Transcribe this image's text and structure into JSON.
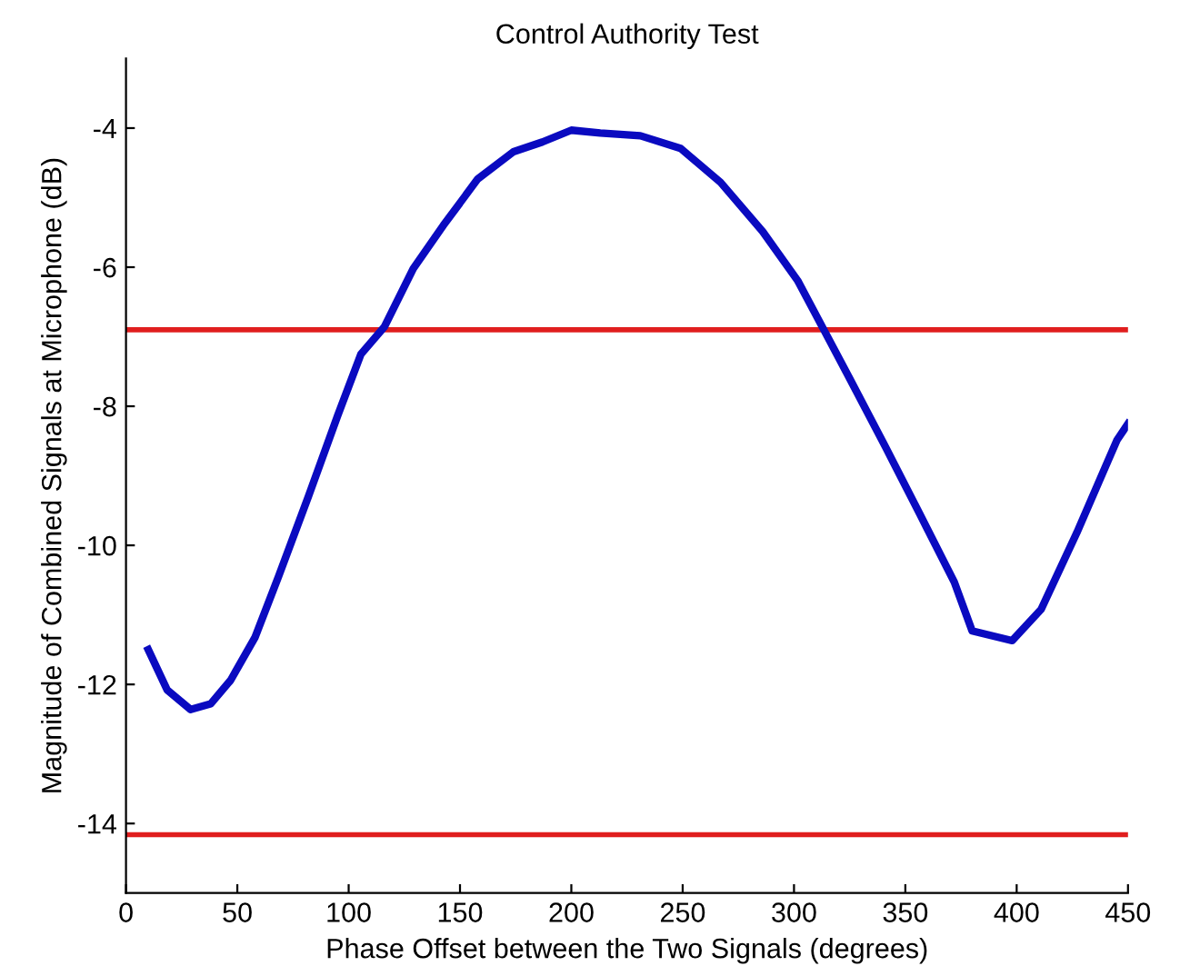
{
  "chart_data": {
    "type": "line",
    "title": "Control Authority Test",
    "xlabel": "Phase Offset between the Two Signals (degrees)",
    "ylabel": "Magnitude of Combined Signals at Microphone (dB)",
    "x": [
      10,
      18.5,
      29,
      38,
      47,
      58,
      68.6,
      82,
      95,
      105.5,
      116,
      129,
      142.5,
      158,
      174,
      187,
      200,
      213,
      231,
      249,
      267,
      286,
      301.6,
      313.4,
      325,
      341,
      356.5,
      372,
      380,
      398,
      411,
      427,
      445,
      450
    ],
    "series": [
      {
        "color": "#0a0ac0",
        "values": [
          -11.5,
          -12.08,
          -12.36,
          -12.28,
          -11.94,
          -11.32,
          -10.44,
          -9.29,
          -8.14,
          -7.25,
          -6.86,
          -6.02,
          -5.4,
          -4.73,
          -4.34,
          -4.2,
          -4.03,
          -4.07,
          -4.11,
          -4.29,
          -4.78,
          -5.49,
          -6.19,
          -6.9,
          -7.6,
          -8.58,
          -9.55,
          -10.53,
          -11.23,
          -11.37,
          -10.92,
          -9.82,
          -8.49,
          -8.25
        ]
      }
    ],
    "ref_lines": [
      {
        "axis": "y",
        "value": -6.9,
        "color": "#e01e1e"
      },
      {
        "axis": "y",
        "value": -14.16,
        "color": "#e01e1e"
      }
    ],
    "xlim": [
      0,
      450
    ],
    "ylim": [
      -15,
      -3
    ],
    "xticks": [
      0,
      50,
      100,
      150,
      200,
      250,
      300,
      350,
      400,
      450
    ],
    "yticks": [
      -14,
      -12,
      -10,
      -8,
      -6,
      -4
    ],
    "grid": false,
    "marker": "none",
    "line_style": "solid"
  }
}
